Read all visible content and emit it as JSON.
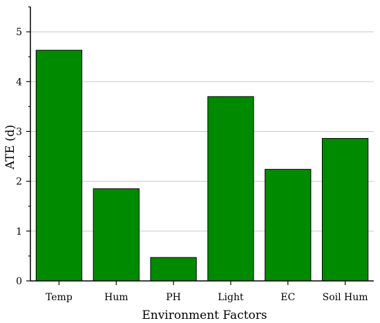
{
  "chart_data": {
    "type": "bar",
    "title": "",
    "xlabel": "Environment Factors",
    "ylabel": "ATE (d)",
    "categories": [
      "Temp",
      "Hum",
      "PH",
      "Light",
      "EC",
      "Soil Hum"
    ],
    "values": [
      4.63,
      1.85,
      0.47,
      3.7,
      2.24,
      2.86
    ],
    "ylim": [
      0,
      5.5
    ],
    "yticks": [
      "0",
      "1",
      "2",
      "3",
      "4",
      "5"
    ],
    "grid": "horizontal",
    "legend": "none",
    "colors": {
      "bar": "#008a00",
      "bar_edge": "#000000",
      "grid": "#c8c8c8",
      "axis": "#000000"
    }
  }
}
